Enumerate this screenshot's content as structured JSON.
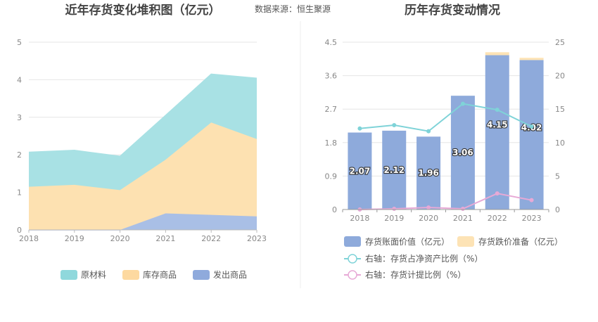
{
  "source": {
    "prefix": "数据来源：",
    "name": "恒生聚源"
  },
  "chart_data": [
    {
      "type": "area",
      "title": "近年存货变化堆积图（亿元）",
      "categories": [
        "2018",
        "2019",
        "2020",
        "2021",
        "2022",
        "2023"
      ],
      "stacked": true,
      "ylim": [
        0,
        5
      ],
      "yticks": [
        "0",
        "1",
        "2",
        "3",
        "4",
        "5"
      ],
      "series": [
        {
          "name": "发出商品",
          "color": "#a9bfe6",
          "values": [
            0.0,
            0.0,
            0.0,
            0.44,
            0.4,
            0.36
          ]
        },
        {
          "name": "库存商品",
          "color": "#fde1b1",
          "values": [
            1.15,
            1.2,
            1.06,
            1.43,
            2.46,
            2.06
          ]
        },
        {
          "name": "原材料",
          "color": "#a8e1e4",
          "values": [
            0.92,
            0.92,
            0.9,
            1.18,
            1.29,
            1.62
          ]
        }
      ],
      "legend_order": [
        "原材料",
        "库存商品",
        "发出商品"
      ],
      "legend_colors": {
        "原材料": "#8fd8dc",
        "库存商品": "#fdd9a0",
        "发出商品": "#8faadc"
      },
      "legend_position": "bottom"
    },
    {
      "type": "bar",
      "title": "历年存货变动情况",
      "categories": [
        "2018",
        "2019",
        "2020",
        "2021",
        "2022",
        "2023"
      ],
      "ylim": [
        0,
        4.5
      ],
      "yticks": [
        "0",
        "0.9",
        "1.8",
        "2.7",
        "3.6",
        "4.5"
      ],
      "y2lim": [
        0,
        25
      ],
      "y2ticks": [
        "0",
        "5",
        "10",
        "15",
        "20",
        "25"
      ],
      "series": [
        {
          "name": "存货账面价值（亿元）",
          "kind": "bar",
          "color": "#8eaadb",
          "values": [
            2.07,
            2.12,
            1.96,
            3.06,
            4.15,
            4.02
          ],
          "labels": [
            "2.07",
            "2.12",
            "1.96",
            "3.06",
            "4.15",
            "4.02"
          ]
        },
        {
          "name": "存货跌价准备（亿元）",
          "kind": "bar-stack",
          "color": "#fde3b5",
          "values": [
            0,
            0,
            0,
            0,
            0.08,
            0.06
          ]
        },
        {
          "name": "右轴：存货占净资产比例（%）",
          "kind": "line",
          "axis": "right",
          "color": "#7fd3d8",
          "values": [
            12.1,
            12.6,
            11.7,
            15.8,
            14.9,
            12.4
          ]
        },
        {
          "name": "右轴：存货计提比例（%）",
          "kind": "line",
          "axis": "right",
          "color": "#e7a9d6",
          "values": [
            0.0,
            0.1,
            0.3,
            0.1,
            2.4,
            1.4
          ]
        }
      ],
      "legend_position": "bottom"
    }
  ]
}
